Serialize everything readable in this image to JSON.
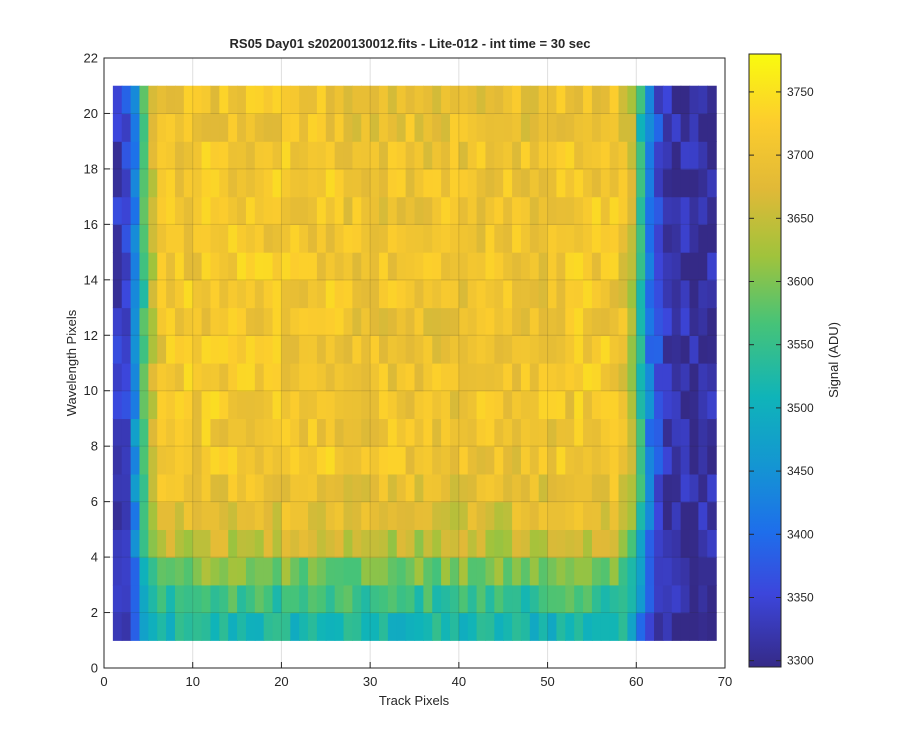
{
  "chart_data": {
    "type": "heatmap",
    "title": "RS05 Day01  s20200130012.fits - Lite-012 - int time = 30 sec",
    "xlabel": "Track Pixels",
    "ylabel": "Wavelength Pixels",
    "colorbar_label": "Signal (ADU)",
    "colormap": "parula",
    "xlim": [
      0,
      70
    ],
    "ylim": [
      0,
      22
    ],
    "clim": [
      3295,
      3780
    ],
    "x_ticks": [
      0,
      10,
      20,
      30,
      40,
      50,
      60,
      70
    ],
    "y_ticks": [
      0,
      2,
      4,
      6,
      8,
      10,
      12,
      14,
      16,
      18,
      20,
      22
    ],
    "colorbar_ticks": [
      3300,
      3350,
      3400,
      3450,
      3500,
      3550,
      3600,
      3650,
      3700,
      3750
    ],
    "grid": true,
    "data_extent": {
      "x": [
        1,
        69
      ],
      "y": [
        1,
        21
      ]
    },
    "profile": {
      "track_columns_x": [
        1,
        2,
        3,
        4,
        5,
        6,
        7,
        8,
        9,
        10,
        11,
        12,
        13,
        14,
        15,
        16,
        17,
        18,
        19,
        20,
        21,
        22,
        23,
        24,
        25,
        26,
        27,
        28,
        29,
        30,
        31,
        32,
        33,
        34,
        35,
        36,
        37,
        38,
        39,
        40,
        41,
        42,
        43,
        44,
        45,
        46,
        47,
        48,
        49,
        50,
        51,
        52,
        53,
        54,
        55,
        56,
        57,
        58,
        59,
        60,
        61,
        62,
        63,
        64,
        65,
        66,
        67,
        68
      ],
      "column_base_adu": [
        3330,
        3360,
        3440,
        3560,
        3650,
        3700,
        3705,
        3710,
        3710,
        3710,
        3710,
        3710,
        3710,
        3710,
        3710,
        3710,
        3710,
        3710,
        3710,
        3710,
        3710,
        3710,
        3710,
        3710,
        3710,
        3705,
        3700,
        3700,
        3700,
        3700,
        3700,
        3700,
        3700,
        3700,
        3700,
        3700,
        3700,
        3700,
        3700,
        3700,
        3700,
        3700,
        3700,
        3700,
        3700,
        3700,
        3700,
        3700,
        3700,
        3700,
        3705,
        3705,
        3710,
        3710,
        3710,
        3710,
        3705,
        3690,
        3640,
        3540,
        3420,
        3360,
        3330,
        3320,
        3315,
        3310,
        3310,
        3310
      ],
      "wavelength_rows_y": [
        1,
        2,
        3,
        4,
        5,
        6,
        7,
        8,
        9,
        10,
        11,
        12,
        13,
        14,
        15,
        16,
        17,
        18,
        19,
        20
      ],
      "row_offset_adu": [
        -190,
        -155,
        -110,
        -60,
        -30,
        -10,
        0,
        0,
        0,
        0,
        0,
        0,
        0,
        0,
        0,
        0,
        0,
        0,
        -5,
        -10
      ]
    }
  }
}
